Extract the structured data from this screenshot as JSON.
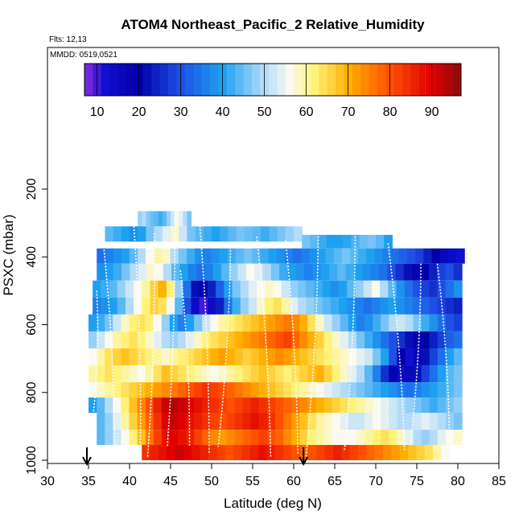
{
  "chart_data": {
    "type": "heatmap",
    "title": "ATOM4 Northeast_Pacific_2 Relative_Humidity",
    "flights_label": "Flts: 12,13",
    "dates_label": "MMDD: 0519,0521",
    "xlabel": "Latitude (deg N)",
    "ylabel": "PSXC (mbar)",
    "xlim": [
      30,
      85
    ],
    "ylim": [
      1000,
      0
    ],
    "x_ticks": [
      30,
      35,
      40,
      45,
      50,
      55,
      60,
      65,
      70,
      75,
      80,
      85
    ],
    "y_ticks": [
      200,
      400,
      600,
      800,
      1000
    ],
    "colorbar": {
      "range": [
        7,
        97
      ],
      "ticks": [
        10,
        20,
        30,
        40,
        50,
        60,
        70,
        80,
        90
      ],
      "stops": [
        {
          "v": 7,
          "color": "#8a2be2"
        },
        {
          "v": 12,
          "color": "#1010d0"
        },
        {
          "v": 20,
          "color": "#0000a8"
        },
        {
          "v": 30,
          "color": "#1e50e6"
        },
        {
          "v": 40,
          "color": "#1ea0f0"
        },
        {
          "v": 50,
          "color": "#b4dcfa"
        },
        {
          "v": 56,
          "color": "#fafaf0"
        },
        {
          "v": 62,
          "color": "#fff27a"
        },
        {
          "v": 70,
          "color": "#ffb000"
        },
        {
          "v": 80,
          "color": "#ff5000"
        },
        {
          "v": 90,
          "color": "#e00000"
        },
        {
          "v": 97,
          "color": "#8b0a0a"
        }
      ]
    },
    "layers": [
      {
        "p_top": 265,
        "p_bot": 310,
        "lat_start": 41,
        "lat_end": 47.5,
        "rh": [
          48,
          50,
          47,
          45,
          44,
          42,
          44,
          48,
          52,
          56,
          54,
          50,
          46
        ]
      },
      {
        "p_top": 310,
        "p_bot": 355,
        "lat_start": 37,
        "lat_end": 61,
        "rh": [
          44,
          42,
          40,
          38,
          40,
          46,
          50,
          54,
          58,
          52,
          46,
          44,
          42,
          40,
          42,
          44,
          46,
          45,
          44,
          42,
          44,
          46,
          48,
          50
        ]
      },
      {
        "p_top": 335,
        "p_bot": 375,
        "lat_start": 61,
        "lat_end": 72,
        "rh": [
          46,
          44,
          42,
          40,
          40,
          41,
          43,
          45,
          46,
          44,
          40
        ]
      },
      {
        "p_top": 375,
        "p_bot": 420,
        "lat_start": 36,
        "lat_end": 80.8,
        "rh": [
          34,
          36,
          38,
          40,
          44,
          50,
          56,
          60,
          58,
          50,
          46,
          42,
          38,
          36,
          38,
          40,
          42,
          44,
          46,
          44,
          42,
          40,
          38,
          36,
          34,
          36,
          38,
          40,
          42,
          44,
          46,
          44,
          42,
          40,
          38,
          36,
          34,
          32,
          30,
          28,
          24,
          20,
          16,
          14,
          12
        ]
      },
      {
        "p_top": 420,
        "p_bot": 470,
        "lat_start": 36,
        "lat_end": 80.5,
        "rh": [
          38,
          40,
          42,
          46,
          50,
          54,
          58,
          56,
          50,
          44,
          40,
          36,
          34,
          36,
          40,
          44,
          48,
          52,
          56,
          54,
          50,
          46,
          42,
          40,
          38,
          36,
          38,
          40,
          42,
          44,
          42,
          40,
          38,
          36,
          34,
          30,
          26,
          22,
          18,
          20,
          24,
          28,
          30,
          26
        ]
      },
      {
        "p_top": 470,
        "p_bot": 520,
        "lat_start": 35.5,
        "lat_end": 80.5,
        "rh": [
          40,
          42,
          44,
          48,
          52,
          56,
          60,
          66,
          70,
          62,
          48,
          34,
          22,
          18,
          24,
          32,
          40,
          46,
          50,
          54,
          56,
          58,
          56,
          52,
          48,
          46,
          44,
          42,
          40,
          38,
          40,
          44,
          48,
          52,
          56,
          50,
          44,
          38,
          34,
          30,
          28,
          26,
          30,
          34,
          38
        ]
      },
      {
        "p_top": 520,
        "p_bot": 570,
        "lat_start": 35.5,
        "lat_end": 80.5,
        "rh": [
          36,
          38,
          40,
          44,
          50,
          56,
          62,
          66,
          64,
          56,
          44,
          30,
          14,
          10,
          14,
          24,
          34,
          42,
          48,
          52,
          58,
          62,
          64,
          60,
          54,
          50,
          48,
          46,
          44,
          42,
          40,
          38,
          36,
          34,
          36,
          38,
          40,
          38,
          36,
          34,
          32,
          30,
          28,
          26,
          24
        ]
      },
      {
        "p_top": 570,
        "p_bot": 620,
        "lat_start": 35,
        "lat_end": 80.5,
        "rh": [
          40,
          42,
          46,
          52,
          58,
          62,
          64,
          62,
          56,
          48,
          40,
          36,
          40,
          46,
          52,
          56,
          60,
          62,
          64,
          66,
          68,
          70,
          72,
          74,
          76,
          74,
          70,
          64,
          58,
          52,
          48,
          44,
          40,
          36,
          38,
          42,
          46,
          50,
          52,
          50,
          46,
          42,
          38,
          34,
          30,
          28
        ]
      },
      {
        "p_top": 620,
        "p_bot": 670,
        "lat_start": 35,
        "lat_end": 80.5,
        "rh": [
          48,
          52,
          56,
          60,
          62,
          64,
          62,
          58,
          54,
          50,
          48,
          50,
          54,
          58,
          62,
          64,
          66,
          68,
          70,
          72,
          74,
          76,
          78,
          80,
          82,
          78,
          74,
          70,
          66,
          62,
          58,
          54,
          50,
          46,
          42,
          38,
          34,
          30,
          26,
          22,
          18,
          20,
          24,
          28,
          32,
          34
        ]
      },
      {
        "p_top": 670,
        "p_bot": 720,
        "lat_start": 35,
        "lat_end": 80.5,
        "rh": [
          56,
          60,
          64,
          66,
          68,
          66,
          64,
          62,
          60,
          58,
          60,
          62,
          64,
          66,
          68,
          70,
          72,
          70,
          68,
          66,
          68,
          70,
          72,
          74,
          72,
          70,
          68,
          66,
          64,
          62,
          60,
          58,
          56,
          54,
          52,
          46,
          40,
          30,
          20,
          12,
          16,
          22,
          28,
          34,
          40,
          44
        ]
      },
      {
        "p_top": 720,
        "p_bot": 770,
        "lat_start": 35,
        "lat_end": 80.5,
        "rh": [
          60,
          62,
          64,
          62,
          60,
          58,
          56,
          60,
          64,
          68,
          66,
          64,
          62,
          60,
          58,
          56,
          58,
          60,
          62,
          64,
          66,
          68,
          66,
          64,
          62,
          64,
          66,
          68,
          70,
          66,
          62,
          58,
          54,
          50,
          44,
          36,
          26,
          18,
          14,
          16,
          22,
          28,
          34,
          40,
          44,
          46
        ]
      },
      {
        "p_top": 770,
        "p_bot": 815,
        "lat_start": 35,
        "lat_end": 80.5,
        "rh": [
          56,
          58,
          60,
          62,
          64,
          66,
          68,
          70,
          72,
          74,
          76,
          78,
          80,
          82,
          84,
          82,
          80,
          78,
          76,
          74,
          72,
          70,
          68,
          66,
          64,
          62,
          60,
          58,
          56,
          54,
          52,
          50,
          48,
          46,
          44,
          42,
          40,
          38,
          36,
          34,
          36,
          38,
          40,
          42,
          44,
          46
        ]
      },
      {
        "p_top": 815,
        "p_bot": 860,
        "lat_start": 35,
        "lat_end": 80.5,
        "rh": [
          40,
          44,
          50,
          56,
          62,
          68,
          74,
          80,
          86,
          92,
          94,
          92,
          90,
          88,
          86,
          84,
          82,
          80,
          82,
          84,
          86,
          84,
          82,
          80,
          78,
          76,
          74,
          72,
          70,
          68,
          66,
          64,
          62,
          60,
          58,
          56,
          54,
          52,
          50,
          48,
          46,
          44,
          42,
          44,
          46,
          48
        ]
      },
      {
        "p_top": 860,
        "p_bot": 910,
        "lat_start": 36,
        "lat_end": 80.5,
        "rh": [
          44,
          48,
          54,
          60,
          66,
          72,
          78,
          84,
          90,
          92,
          90,
          88,
          86,
          84,
          82,
          80,
          82,
          84,
          86,
          88,
          86,
          84,
          80,
          76,
          72,
          68,
          64,
          60,
          58,
          56,
          54,
          52,
          52,
          54,
          56,
          54,
          52,
          50,
          50,
          52,
          54,
          52,
          50,
          48,
          46
        ]
      },
      {
        "p_top": 910,
        "p_bot": 955,
        "lat_start": 36,
        "lat_end": 80.5,
        "rh": [
          44,
          48,
          52,
          56,
          62,
          68,
          76,
          82,
          88,
          90,
          88,
          86,
          82,
          78,
          74,
          72,
          74,
          76,
          78,
          80,
          82,
          80,
          78,
          74,
          70,
          66,
          62,
          60,
          58,
          56,
          56,
          56,
          58,
          60,
          62,
          64,
          62,
          58,
          54,
          50,
          48,
          50,
          54,
          56,
          58
        ]
      },
      {
        "p_top": 955,
        "p_bot": 1000,
        "lat_start": 41.5,
        "lat_end": 79,
        "rh": [
          84,
          86,
          88,
          90,
          92,
          90,
          88,
          86,
          84,
          82,
          80,
          82,
          84,
          86,
          88,
          86,
          84,
          82,
          80,
          78,
          80,
          82,
          84,
          86,
          84,
          82,
          80,
          78,
          76,
          74,
          72,
          70,
          68,
          66,
          64,
          60,
          56
        ]
      }
    ],
    "profile_markers": [
      34.8,
      61.2
    ]
  }
}
